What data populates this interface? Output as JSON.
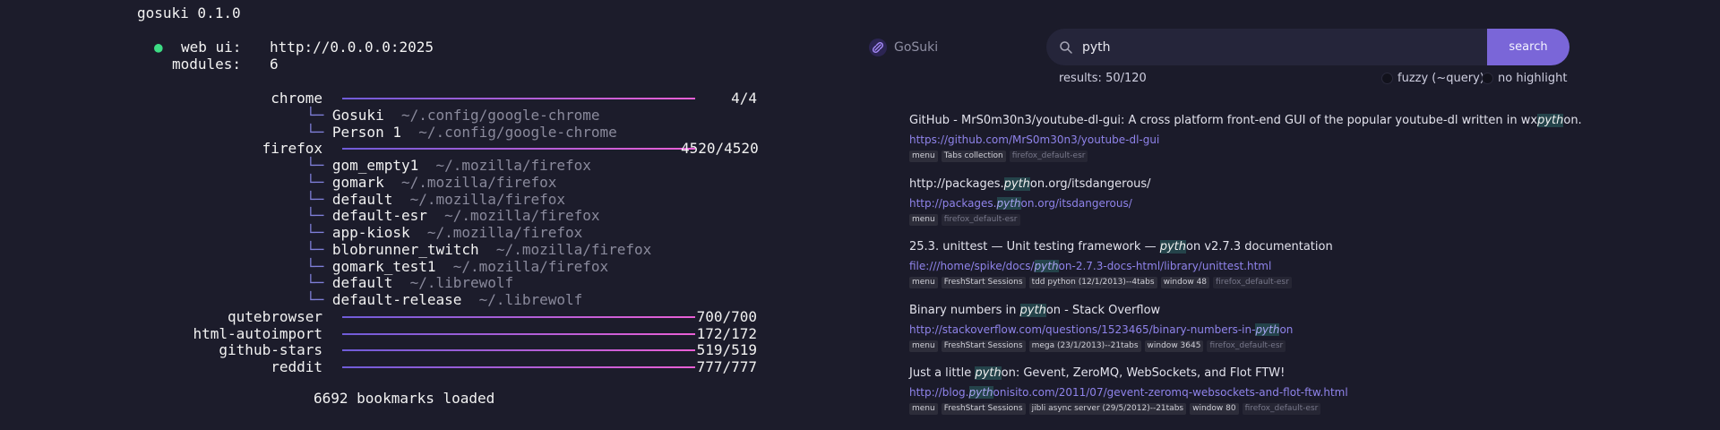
{
  "terminal": {
    "header": "gosuki 0.1.0",
    "status_dot": "●",
    "web_ui_label": "web ui:",
    "web_ui_value": "http://0.0.0.0:2025",
    "modules_label": "modules:",
    "modules_value": "6",
    "tree_glyph": "└─",
    "modules": [
      {
        "name": "chrome",
        "count": "4/4",
        "profiles": [
          {
            "name": "Gosuki",
            "path": "~/.config/google-chrome"
          },
          {
            "name": "Person 1",
            "path": "~/.config/google-chrome"
          }
        ]
      },
      {
        "name": "firefox",
        "count": "4520/4520",
        "profiles": [
          {
            "name": "gom_empty1",
            "path": "~/.mozilla/firefox"
          },
          {
            "name": "gomark",
            "path": "~/.mozilla/firefox"
          },
          {
            "name": "default",
            "path": "~/.mozilla/firefox"
          },
          {
            "name": "default-esr",
            "path": "~/.mozilla/firefox"
          },
          {
            "name": "app-kiosk",
            "path": "~/.mozilla/firefox"
          },
          {
            "name": "blobrunner_twitch",
            "path": "~/.mozilla/firefox"
          },
          {
            "name": "gomark_test1",
            "path": "~/.mozilla/firefox"
          },
          {
            "name": "default",
            "path": "~/.librewolf"
          },
          {
            "name": "default-release",
            "path": "~/.librewolf"
          }
        ]
      },
      {
        "name": "qutebrowser",
        "count": "700/700",
        "profiles": []
      },
      {
        "name": "html-autoimport",
        "count": "172/172",
        "profiles": []
      },
      {
        "name": "github-stars",
        "count": "519/519",
        "profiles": []
      },
      {
        "name": "reddit",
        "count": "777/777",
        "profiles": []
      }
    ],
    "footer": "6692 bookmarks loaded"
  },
  "web": {
    "brand": "GoSuki",
    "brand_icon": "link-icon",
    "search": {
      "value": "pyth",
      "button_label": "search",
      "icon": "search-icon"
    },
    "results_count": "results: 50/120",
    "options": [
      {
        "label": "fuzzy (~query)",
        "checked": false
      },
      {
        "label": "no highlight",
        "checked": false
      }
    ],
    "results": [
      {
        "title": [
          "GitHub - MrS0m30n3/youtube-dl-gui: A cross platform front-end GUI of the popular youtube-dl written in wx",
          "pyth",
          "on."
        ],
        "url": [
          "https://github.com/MrS0m30n3/youtube-dl-gui",
          "",
          ""
        ],
        "tags": [
          "menu",
          "Tabs collection"
        ],
        "source": "firefox_default-esr"
      },
      {
        "title": [
          "http://packages.",
          "pyth",
          "on.org/itsdangerous/"
        ],
        "url": [
          "http://packages.",
          "pyth",
          "on.org/itsdangerous/"
        ],
        "tags": [
          "menu"
        ],
        "source": "firefox_default-esr"
      },
      {
        "title": [
          "25.3. unittest — Unit testing framework — ",
          "pyth",
          "on v2.7.3 documentation"
        ],
        "url": [
          "file:///home/spike/docs/",
          "pyth",
          "on-2.7.3-docs-html/library/unittest.html"
        ],
        "tags": [
          "menu",
          "FreshStart Sessions",
          "tdd python (12/1/2013)--4tabs",
          "window 48"
        ],
        "source": "firefox_default-esr"
      },
      {
        "title": [
          "Binary numbers in ",
          "pyth",
          "on - Stack Overflow"
        ],
        "url": [
          "http://stackoverflow.com/questions/1523465/binary-numbers-in-",
          "pyth",
          "on"
        ],
        "tags": [
          "menu",
          "FreshStart Sessions",
          "mega (23/1/2013)--21tabs",
          "window 3645"
        ],
        "source": "firefox_default-esr"
      },
      {
        "title": [
          "Just a little ",
          "pyth",
          "on: Gevent, ZeroMQ, WebSockets, and Flot FTW!"
        ],
        "url": [
          "http://blog.",
          "pyth",
          "onisito.com/2011/07/gevent-zeromq-websockets-and-flot-ftw.html"
        ],
        "tags": [
          "menu",
          "FreshStart Sessions",
          "jibli async server (29/5/2012)--21tabs",
          "window 80"
        ],
        "source": "firefox_default-esr"
      }
    ],
    "colors": {
      "accent": "#7a66d8",
      "bar_start": "#6f5cd8",
      "bar_end": "#ea5fd6",
      "status_ok": "#3ddc84"
    }
  }
}
